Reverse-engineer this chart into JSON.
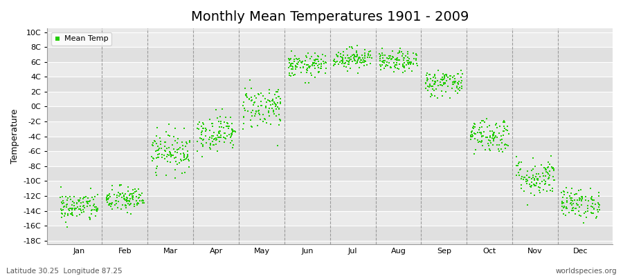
{
  "title": "Monthly Mean Temperatures 1901 - 2009",
  "ylabel": "Temperature",
  "subtitle": "Latitude 30.25  Longitude 87.25",
  "watermark": "worldspecies.org",
  "legend_label": "Mean Temp",
  "dot_color": "#22cc00",
  "background_color": "#ffffff",
  "plot_bg_color": "#e8e8e8",
  "months": [
    "Jan",
    "Feb",
    "Mar",
    "Apr",
    "May",
    "Jun",
    "Jul",
    "Aug",
    "Sep",
    "Oct",
    "Nov",
    "Dec"
  ],
  "month_means": [
    -13.5,
    -12.5,
    -6.0,
    -3.5,
    0.0,
    5.5,
    6.5,
    6.0,
    3.2,
    -3.8,
    -9.5,
    -13.0
  ],
  "month_stds": [
    1.0,
    0.9,
    1.3,
    1.2,
    1.5,
    0.8,
    0.7,
    0.7,
    0.9,
    1.2,
    1.3,
    1.0
  ],
  "n_years": 109,
  "seed": 42,
  "ylim": [
    -18.5,
    10.5
  ],
  "ytick_vals": [
    -18,
    -16,
    -14,
    -12,
    -10,
    -8,
    -6,
    -4,
    -2,
    0,
    2,
    4,
    6,
    8,
    10
  ],
  "title_fontsize": 14,
  "axis_fontsize": 9,
  "tick_fontsize": 8,
  "marker_size": 3.5
}
